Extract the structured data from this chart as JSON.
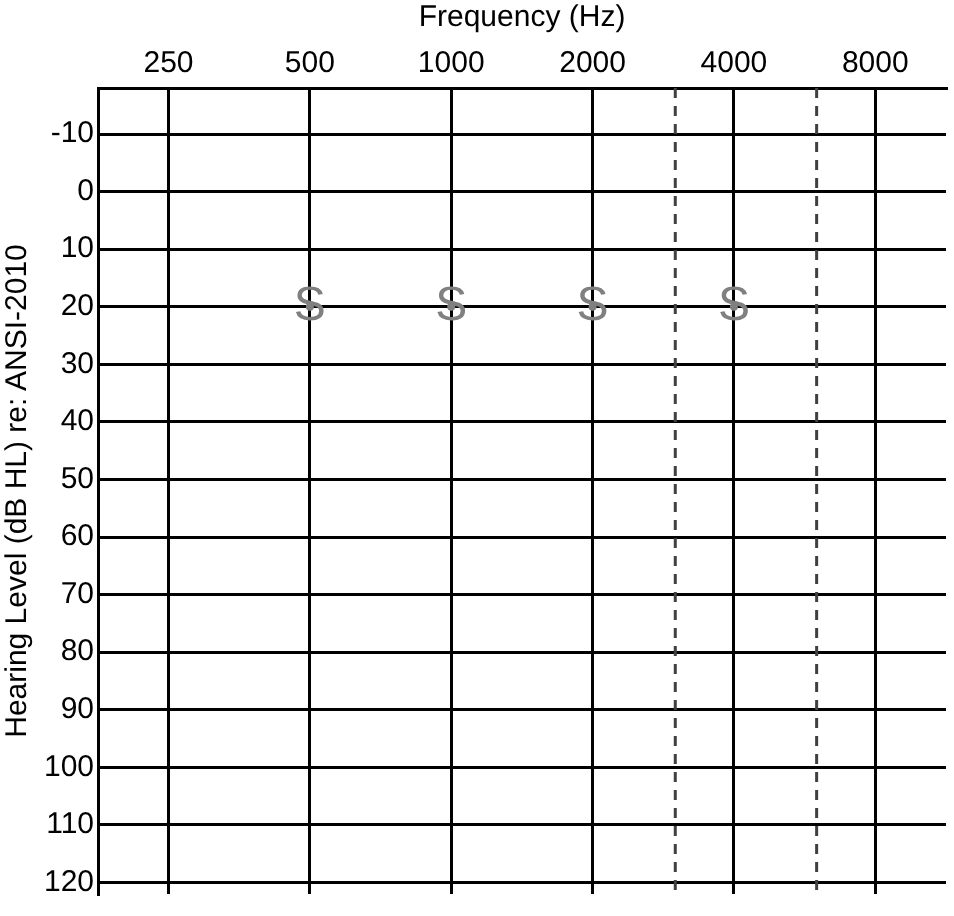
{
  "chart_data": {
    "type": "scatter",
    "xlabel": "Frequency (Hz)",
    "ylabel": "Hearing Level (dB HL) re: ANSI-2010",
    "x": [
      500,
      1000,
      2000,
      4000
    ],
    "series": [
      {
        "name": "S",
        "color": "#808080",
        "values": [
          20,
          20,
          20,
          20
        ]
      }
    ],
    "log": "x",
    "xlim": [
      177,
      11314
    ],
    "xticks": [
      250,
      500,
      1000,
      2000,
      4000,
      8000
    ],
    "ylim": [
      122,
      -18
    ],
    "yticks": [
      -10,
      0,
      10,
      20,
      30,
      40,
      50,
      60,
      70,
      80,
      90,
      100,
      110,
      120
    ],
    "grid": true,
    "legend": false,
    "marker": "circle",
    "ref_lines": [
      {
        "axis": "x",
        "value": 3000,
        "color": "#404040",
        "line_style": "dashed"
      },
      {
        "axis": "x",
        "value": 6000,
        "color": "#404040",
        "line_style": "dashed"
      }
    ]
  }
}
